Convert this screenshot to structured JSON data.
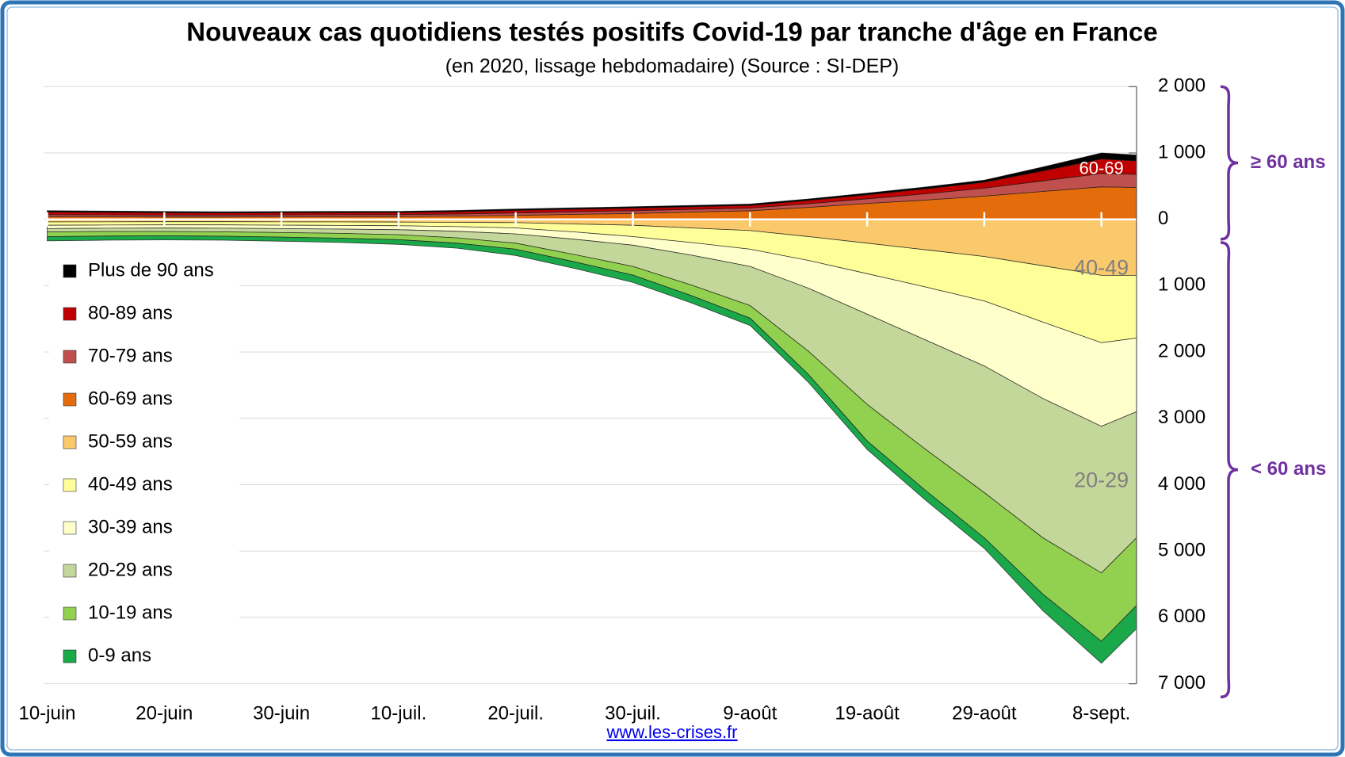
{
  "chart_data": {
    "type": "stacked-area",
    "title": "Nouveaux cas quotidiens testés positifs Covid-19 par tranche d'âge en France",
    "subtitle": "(en 2020, lissage hebdomadaire) (Source : SI-DEP)",
    "source_link": "www.les-crises.fr",
    "x": [
      "2020-06-10",
      "2020-06-15",
      "2020-06-20",
      "2020-06-25",
      "2020-06-30",
      "2020-07-05",
      "2020-07-10",
      "2020-07-15",
      "2020-07-20",
      "2020-07-25",
      "2020-07-30",
      "2020-08-04",
      "2020-08-09",
      "2020-08-14",
      "2020-08-19",
      "2020-08-24",
      "2020-08-29",
      "2020-09-03",
      "2020-09-08",
      "2020-09-11"
    ],
    "xlim": [
      "2020-06-10",
      "2020-09-11"
    ],
    "xticks": [
      {
        "value": "2020-06-10",
        "label": "10-juin"
      },
      {
        "value": "2020-06-20",
        "label": "20-juin"
      },
      {
        "value": "2020-06-30",
        "label": "30-juin"
      },
      {
        "value": "2020-07-10",
        "label": "10-juil."
      },
      {
        "value": "2020-07-20",
        "label": "20-juil."
      },
      {
        "value": "2020-07-30",
        "label": "30-juil."
      },
      {
        "value": "2020-08-09",
        "label": "9-août"
      },
      {
        "value": "2020-08-19",
        "label": "19-août"
      },
      {
        "value": "2020-08-29",
        "label": "29-août"
      },
      {
        "value": "2020-09-08",
        "label": "8-sept."
      }
    ],
    "ylim": [
      -7000,
      2000
    ],
    "yticks": [
      {
        "value": 2000,
        "label": "2 000"
      },
      {
        "value": 1000,
        "label": "1 000"
      },
      0,
      {
        "value": -1000,
        "label": "1 000"
      },
      {
        "value": -2000,
        "label": "2 000"
      },
      {
        "value": -3000,
        "label": "3 000"
      },
      {
        "value": -4000,
        "label": "4 000"
      },
      {
        "value": -5000,
        "label": "5 000"
      },
      {
        "value": -6000,
        "label": "6 000"
      },
      {
        "value": -7000,
        "label": "7 000"
      }
    ],
    "grid": true,
    "legend": "left",
    "series": [
      {
        "name": "Plus de 90 ans",
        "color": "#000000",
        "stack": "above",
        "values": [
          20,
          19,
          18,
          17,
          17,
          17,
          17,
          18,
          20,
          20,
          20,
          20,
          20,
          22,
          25,
          28,
          30,
          60,
          90,
          90
        ]
      },
      {
        "name": "80-89 ans",
        "color": "#c00000",
        "stack": "above",
        "values": [
          40,
          38,
          36,
          34,
          34,
          34,
          34,
          36,
          40,
          40,
          40,
          40,
          40,
          50,
          60,
          75,
          90,
          150,
          220,
          200
        ]
      },
      {
        "name": "70-79 ans",
        "color": "#c0504d",
        "stack": "above",
        "values": [
          30,
          29,
          28,
          28,
          28,
          28,
          28,
          30,
          35,
          38,
          40,
          40,
          40,
          55,
          70,
          95,
          120,
          160,
          200,
          200
        ]
      },
      {
        "name": "60-69 ans",
        "color": "#e46c0a",
        "stack": "above",
        "values": [
          40,
          38,
          36,
          36,
          38,
          40,
          42,
          50,
          60,
          75,
          90,
          110,
          130,
          180,
          240,
          290,
          350,
          420,
          490,
          480
        ]
      },
      {
        "name": "50-59 ans",
        "color": "#f9c96b",
        "stack": "below",
        "values": [
          40,
          38,
          36,
          36,
          38,
          40,
          42,
          45,
          50,
          70,
          90,
          130,
          170,
          260,
          360,
          460,
          560,
          700,
          845,
          845
        ]
      },
      {
        "name": "40-49 ans",
        "color": "#ffff99",
        "stack": "below",
        "values": [
          50,
          48,
          48,
          48,
          50,
          52,
          55,
          65,
          80,
          120,
          170,
          220,
          280,
          360,
          460,
          560,
          670,
          850,
          1015,
          945
        ]
      },
      {
        "name": "30-39 ans",
        "color": "#ffffcc",
        "stack": "below",
        "values": [
          50,
          48,
          48,
          50,
          52,
          55,
          60,
          70,
          90,
          110,
          130,
          190,
          260,
          420,
          610,
          800,
          980,
          1150,
          1260,
          1110
        ]
      },
      {
        "name": "20-29 ans",
        "color": "#c4d79b",
        "stack": "below",
        "values": [
          50,
          50,
          52,
          55,
          60,
          65,
          75,
          100,
          140,
          230,
          320,
          450,
          590,
          950,
          1360,
          1650,
          1910,
          2100,
          2210,
          1900
        ]
      },
      {
        "name": "10-19 ans",
        "color": "#92d050",
        "stack": "below",
        "values": [
          70,
          68,
          65,
          65,
          68,
          72,
          75,
          80,
          90,
          110,
          130,
          160,
          190,
          350,
          550,
          620,
          680,
          850,
          1030,
          1020
        ]
      },
      {
        "name": "0-9 ans",
        "color": "#1aa84a",
        "stack": "below",
        "values": [
          65,
          62,
          60,
          60,
          62,
          65,
          70,
          75,
          95,
          100,
          110,
          110,
          110,
          120,
          130,
          145,
          160,
          250,
          330,
          350
        ]
      }
    ],
    "annotations": [
      {
        "text": "60-69",
        "x": "2020-09-08",
        "y": 750,
        "color": "#ffffff"
      },
      {
        "text": "40-49",
        "x": "2020-09-08",
        "y": -750,
        "color": "#808080"
      },
      {
        "text": "20-29",
        "x": "2020-09-08",
        "y": -3950,
        "color": "#808080"
      }
    ],
    "brackets": [
      {
        "text": "≥ 60 ans",
        "from": 2000,
        "to": -300,
        "color": "#7030a0"
      },
      {
        "text": "< 60 ans",
        "from": -350,
        "to": -7200,
        "color": "#7030a0"
      }
    ]
  }
}
